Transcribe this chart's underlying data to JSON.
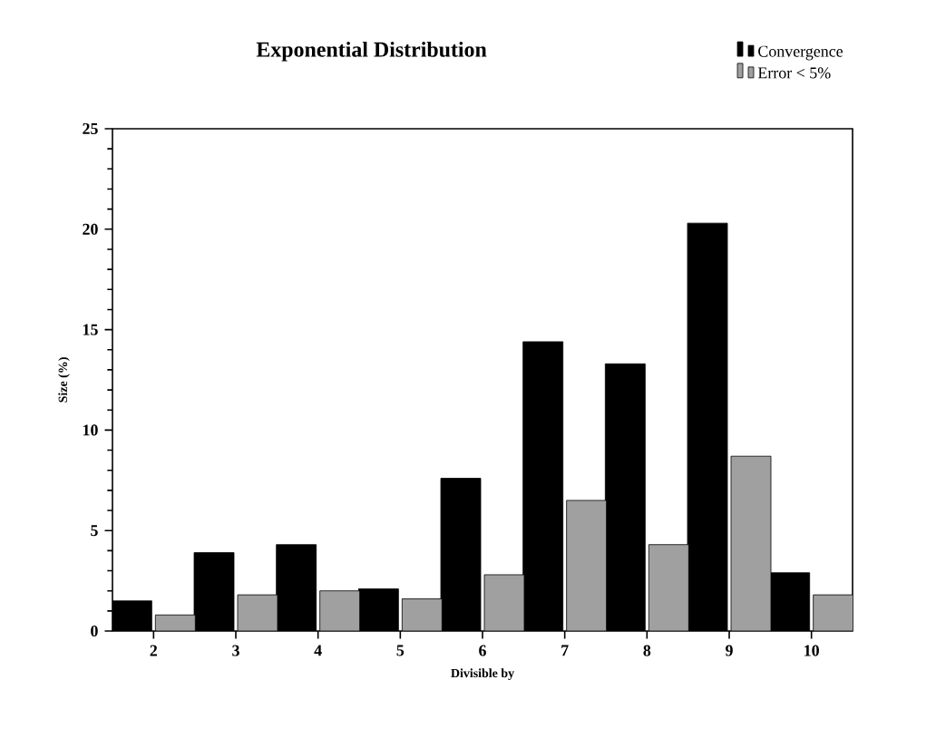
{
  "chart_data": {
    "type": "bar",
    "title": "Exponential Distribution",
    "xlabel": "Divisible by",
    "ylabel": "Size (%)",
    "categories": [
      "2",
      "3",
      "4",
      "5",
      "6",
      "7",
      "8",
      "9",
      "10"
    ],
    "series": [
      {
        "name": "Convergence",
        "color": "#000000",
        "values": [
          1.5,
          3.9,
          4.3,
          2.1,
          7.6,
          14.4,
          13.3,
          20.3,
          2.9
        ]
      },
      {
        "name": "Error < 5%",
        "color": "#a0a0a0",
        "values": [
          0.8,
          1.8,
          2.0,
          1.6,
          2.8,
          6.5,
          4.3,
          8.7,
          1.8
        ]
      }
    ],
    "ylim": [
      0,
      25
    ],
    "yticks": [
      0,
      5,
      10,
      15,
      20,
      25
    ],
    "legend": "top right",
    "grid": false
  }
}
